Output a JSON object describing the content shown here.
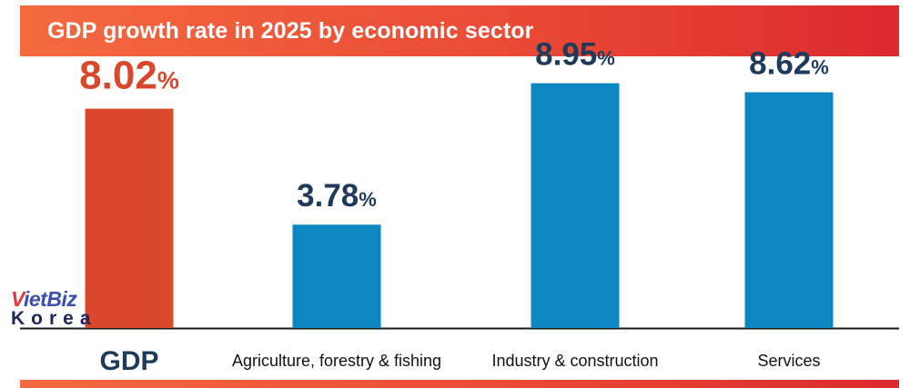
{
  "title": "GDP growth rate in 2025 by economic sector",
  "logo": {
    "v": "V",
    "rest": "ietBiz",
    "sub": "Korea"
  },
  "chart_data": {
    "type": "bar",
    "title": "GDP growth rate in 2025 by economic sector",
    "categories": [
      "GDP",
      "Agriculture, forestry & fishing",
      "Industry & construction",
      "Services"
    ],
    "values": [
      8.02,
      3.78,
      8.95,
      8.62
    ],
    "value_labels": [
      "8.02",
      "3.78",
      "8.95",
      "8.62"
    ],
    "unit": "%",
    "ylim": [
      0,
      10
    ],
    "xlabel": "",
    "ylabel": "",
    "grid": false,
    "colors": {
      "highlight": "#d9482b",
      "bar": "#0b86c1",
      "highlight_label": "#d9482b",
      "label": "#1f3b5c",
      "axis": "#1a1a1a"
    }
  }
}
